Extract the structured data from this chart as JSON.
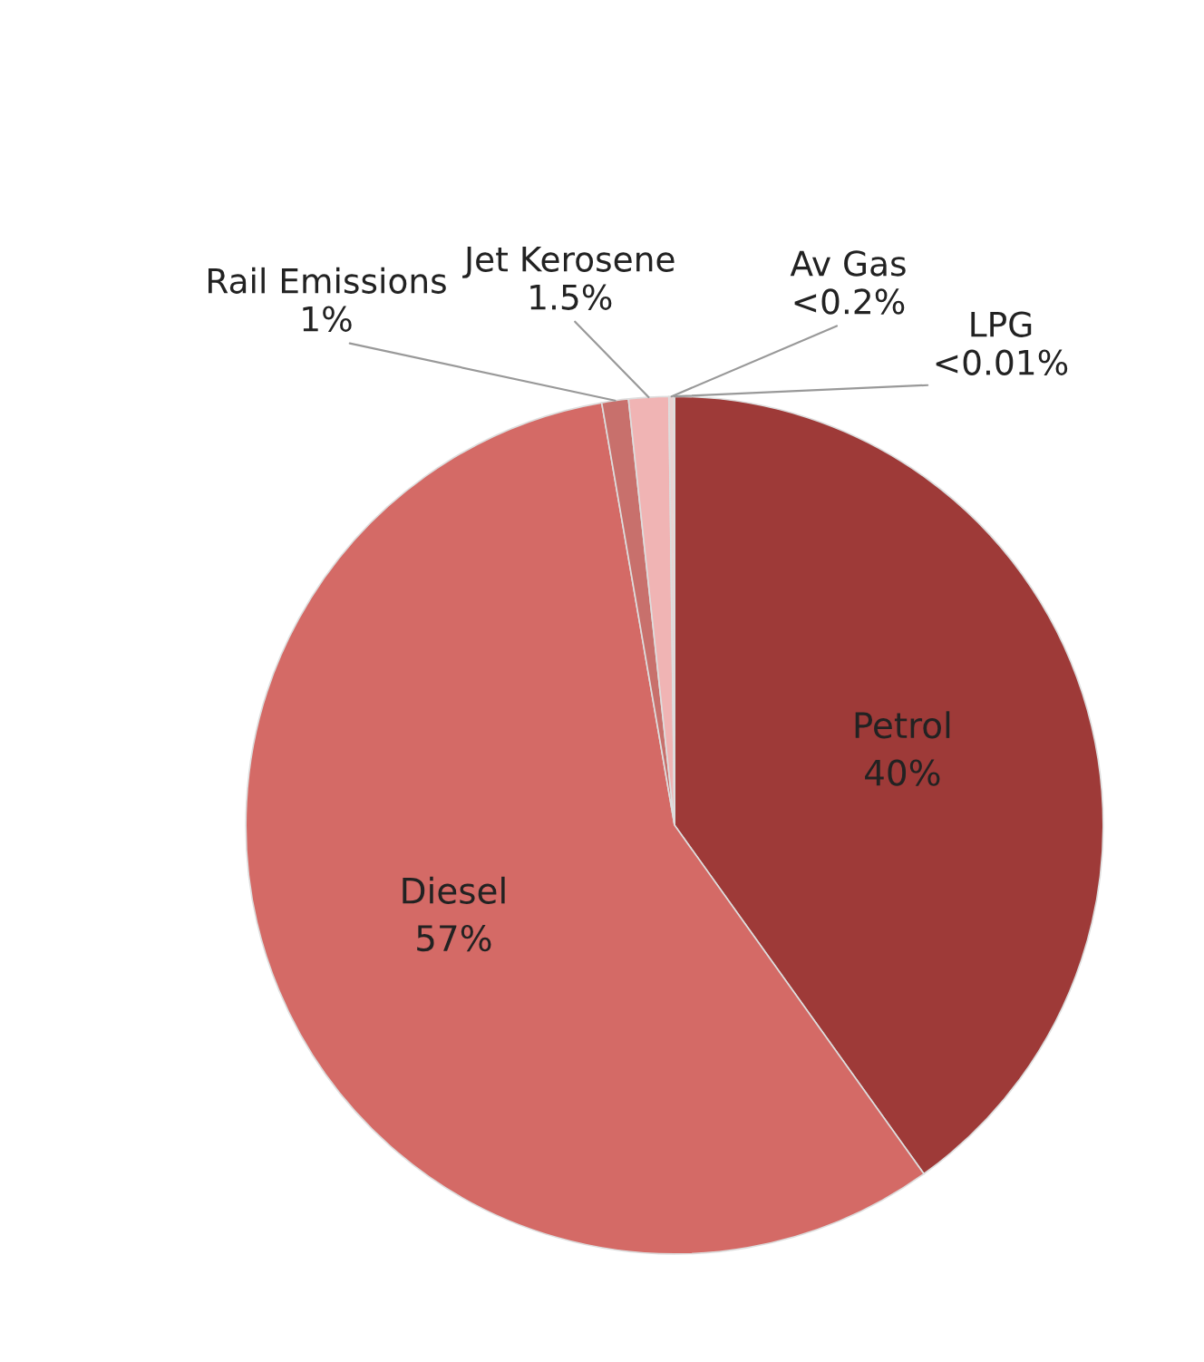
{
  "chart_data": {
    "type": "pie",
    "categories": [
      "Petrol",
      "Diesel",
      "Rail Emissions",
      "Jet Kerosene",
      "Av Gas",
      "LPG"
    ],
    "values": [
      40,
      57,
      1,
      1.5,
      0.2,
      0.01
    ],
    "value_labels": [
      "40%",
      "57%",
      "1%",
      "1.5%",
      "<0.2%",
      "<0.01%"
    ],
    "colors": [
      "#9e3a38",
      "#d46a66",
      "#c8706c",
      "#f0b4b4",
      "#e9d3d3",
      "#b4b4b4"
    ]
  }
}
